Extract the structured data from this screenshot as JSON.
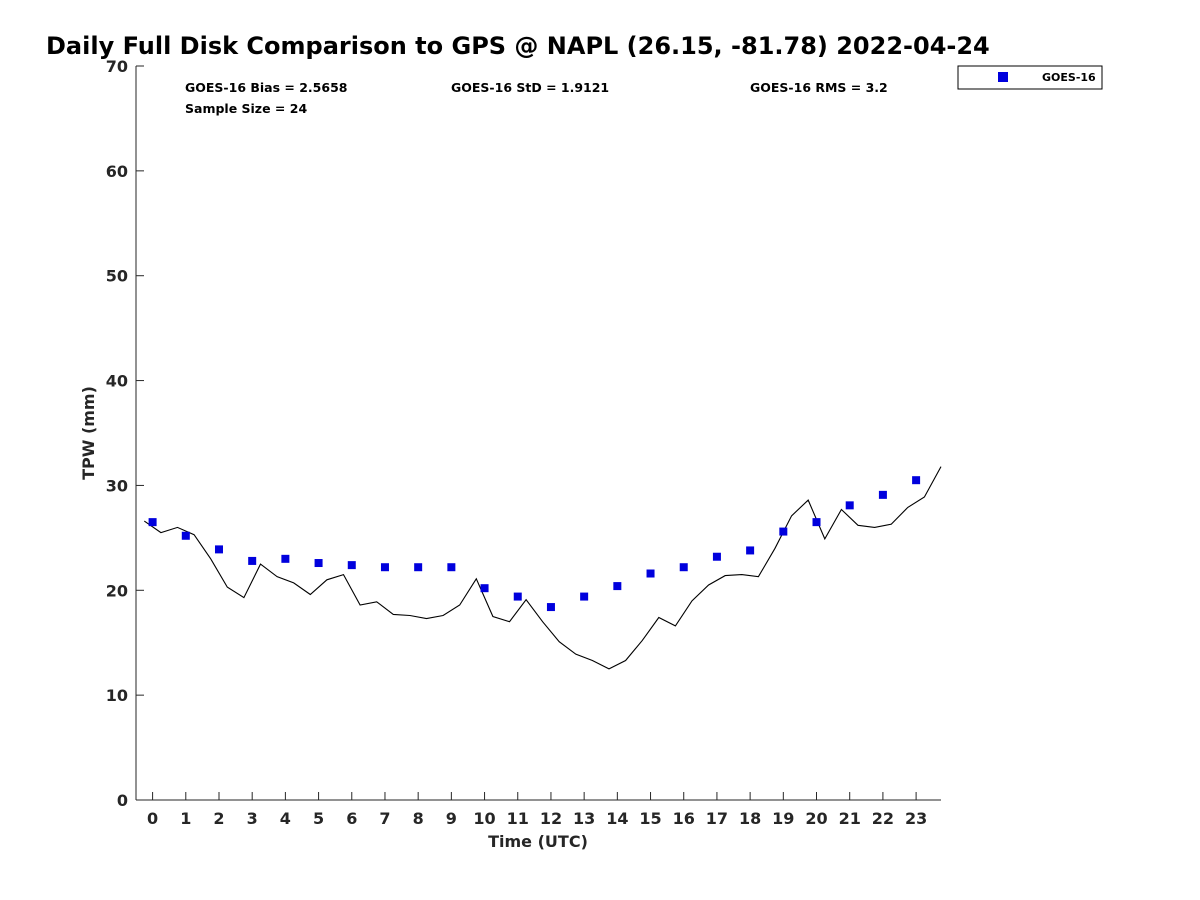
{
  "chart_data": {
    "type": "scatter",
    "title": "Daily Full Disk Comparison to GPS @ NAPL (26.15, -81.78) 2022-04-24",
    "xlabel": "Time (UTC)",
    "ylabel": "TPW (mm)",
    "xlim": [
      -0.5,
      23.75
    ],
    "ylim": [
      0,
      70
    ],
    "xticks": [
      0,
      1,
      2,
      3,
      4,
      5,
      6,
      7,
      8,
      9,
      10,
      11,
      12,
      13,
      14,
      15,
      16,
      17,
      18,
      19,
      20,
      21,
      22,
      23
    ],
    "yticks": [
      0,
      10,
      20,
      30,
      40,
      50,
      60,
      70
    ],
    "grid": false,
    "legend_position": "top-right, outside plot",
    "stats": {
      "bias": "GOES-16 Bias = 2.5658",
      "std": "GOES-16 StD = 1.9121",
      "rms": "GOES-16 RMS = 3.2",
      "sample": "Sample Size = 24"
    },
    "series": [
      {
        "name": "GOES-16",
        "kind": "scatter",
        "marker": "square",
        "color": "#0000dd",
        "x": [
          0,
          1,
          2,
          3,
          4,
          5,
          6,
          7,
          8,
          9,
          10,
          11,
          12,
          13,
          14,
          15,
          16,
          17,
          18,
          19,
          20,
          21,
          22,
          23
        ],
        "y": [
          26.5,
          25.2,
          23.9,
          22.8,
          23.0,
          22.6,
          22.4,
          22.2,
          22.2,
          22.2,
          20.2,
          19.4,
          18.4,
          19.4,
          20.4,
          21.6,
          22.2,
          23.2,
          23.8,
          25.6,
          26.5,
          28.1,
          29.1,
          30.5
        ]
      },
      {
        "kind": "line",
        "color": "#000000",
        "x": [
          -0.25,
          0.25,
          0.75,
          1.25,
          1.75,
          2.25,
          2.75,
          3.25,
          3.75,
          4.25,
          4.75,
          5.25,
          5.75,
          6.25,
          6.75,
          7.25,
          7.75,
          8.25,
          8.75,
          9.25,
          9.75,
          10.25,
          10.75,
          11.25,
          11.75,
          12.25,
          12.75,
          13.25,
          13.75,
          14.25,
          14.75,
          15.25,
          15.75,
          16.25,
          16.75,
          17.25,
          17.75,
          18.25,
          18.75,
          19.25,
          19.75,
          20.25,
          20.75,
          21.25,
          21.75,
          22.25,
          22.75,
          23.25,
          23.75
        ],
        "y": [
          26.6,
          25.5,
          26.0,
          25.3,
          23.0,
          20.3,
          19.3,
          22.5,
          21.3,
          20.7,
          19.6,
          21.0,
          21.5,
          18.6,
          18.9,
          17.7,
          17.6,
          17.3,
          17.6,
          18.6,
          21.1,
          17.5,
          17.0,
          19.1,
          17.0,
          15.1,
          13.9,
          13.3,
          12.5,
          13.3,
          15.2,
          17.4,
          16.6,
          19.0,
          20.5,
          21.4,
          21.5,
          21.3,
          24.0,
          27.1,
          28.6,
          24.9,
          27.7,
          26.2,
          26.0,
          26.3,
          27.9,
          28.9,
          31.8
        ]
      }
    ]
  }
}
